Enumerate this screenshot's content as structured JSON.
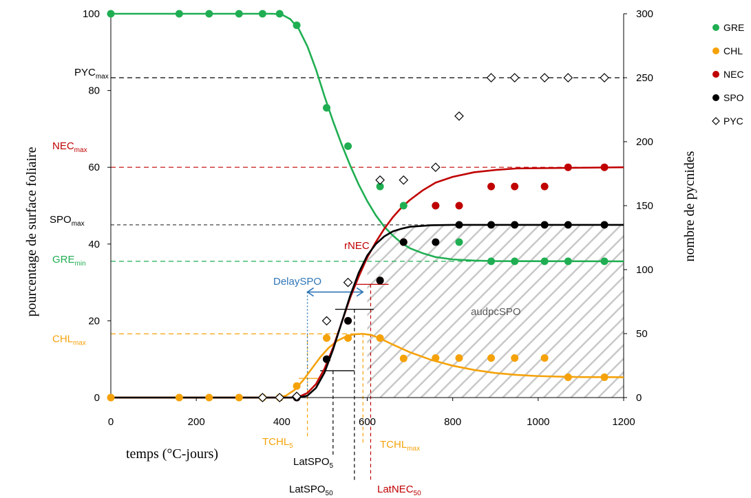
{
  "chart_data": {
    "type": "scatter",
    "xlabel": "temps (°C-jours)",
    "ylabel_left": "pourcentage de surface foliaire",
    "ylabel_right": "nombre de pycnides",
    "x_range": [
      0,
      1200
    ],
    "y_left_range": [
      0,
      100
    ],
    "y_right_range": [
      0,
      300
    ],
    "x_ticks": [
      "0",
      "200",
      "400",
      "600",
      "800",
      "1000",
      "1200"
    ],
    "y_left_ticks": [
      "0",
      "20",
      "40",
      "60",
      "80",
      "100"
    ],
    "y_right_ticks": [
      "0",
      "50",
      "100",
      "150",
      "200",
      "250",
      "300"
    ],
    "grid": false,
    "legend_position": "right",
    "colors": {
      "GRE": "#1fae52",
      "CHL": "#f5a20a",
      "NEC": "#c00000",
      "SPO": "#000000",
      "PYC": "#000000",
      "blue": "#2e75b6",
      "hatch": "#c8c8c8"
    },
    "series": [
      {
        "name": "GRE",
        "axis": "left",
        "marker": "circle",
        "points": [
          [
            0,
            100
          ],
          [
            160,
            100
          ],
          [
            230,
            100
          ],
          [
            300,
            100
          ],
          [
            355,
            100
          ],
          [
            395,
            100
          ],
          [
            435,
            97
          ],
          [
            505,
            75.5
          ],
          [
            555,
            65.5
          ],
          [
            630,
            55
          ],
          [
            685,
            50
          ],
          [
            760,
            50
          ],
          [
            815,
            40.5
          ],
          [
            890,
            35.5
          ],
          [
            945,
            35.5
          ],
          [
            1015,
            35.5
          ],
          [
            1070,
            35.5
          ],
          [
            1155,
            35.5
          ]
        ],
        "curve": [
          [
            0,
            100
          ],
          [
            380,
            100
          ],
          [
            400,
            99.8
          ],
          [
            420,
            98.6
          ],
          [
            440,
            96
          ],
          [
            460,
            91.5
          ],
          [
            480,
            85.5
          ],
          [
            500,
            78.5
          ],
          [
            520,
            72
          ],
          [
            540,
            66
          ],
          [
            560,
            60.5
          ],
          [
            580,
            55.5
          ],
          [
            600,
            51.2
          ],
          [
            620,
            47.5
          ],
          [
            640,
            44.5
          ],
          [
            660,
            42.2
          ],
          [
            680,
            40.3
          ],
          [
            700,
            38.9
          ],
          [
            730,
            37.6
          ],
          [
            760,
            36.6
          ],
          [
            800,
            36
          ],
          [
            850,
            35.7
          ],
          [
            900,
            35.55
          ],
          [
            1200,
            35.5
          ]
        ]
      },
      {
        "name": "CHL",
        "axis": "left",
        "marker": "circle",
        "points": [
          [
            0,
            0
          ],
          [
            160,
            0
          ],
          [
            230,
            0
          ],
          [
            300,
            0
          ],
          [
            355,
            0
          ],
          [
            395,
            0
          ],
          [
            435,
            3
          ],
          [
            505,
            15.5
          ],
          [
            555,
            15.5
          ],
          [
            630,
            15.5
          ],
          [
            685,
            10.2
          ],
          [
            760,
            10.3
          ],
          [
            815,
            10.3
          ],
          [
            890,
            10.3
          ],
          [
            945,
            10.3
          ],
          [
            1015,
            10.3
          ],
          [
            1070,
            5.3
          ],
          [
            1155,
            5.3
          ]
        ],
        "curve": [
          [
            0,
            0
          ],
          [
            390,
            0
          ],
          [
            410,
            0.5
          ],
          [
            430,
            2
          ],
          [
            450,
            4.5
          ],
          [
            470,
            7.5
          ],
          [
            490,
            10.5
          ],
          [
            510,
            13
          ],
          [
            530,
            14.8
          ],
          [
            550,
            15.9
          ],
          [
            570,
            16.5
          ],
          [
            590,
            16.6
          ],
          [
            610,
            16.3
          ],
          [
            630,
            15.4
          ],
          [
            660,
            13.8
          ],
          [
            700,
            11.8
          ],
          [
            750,
            9.8
          ],
          [
            800,
            8.3
          ],
          [
            850,
            7.2
          ],
          [
            900,
            6.4
          ],
          [
            950,
            5.9
          ],
          [
            1000,
            5.6
          ],
          [
            1050,
            5.45
          ],
          [
            1100,
            5.35
          ],
          [
            1200,
            5.3
          ]
        ]
      },
      {
        "name": "NEC",
        "axis": "left",
        "marker": "circle",
        "points": [
          [
            435,
            0
          ],
          [
            505,
            10
          ],
          [
            555,
            20
          ],
          [
            630,
            30.5
          ],
          [
            685,
            40.5
          ],
          [
            760,
            50
          ],
          [
            815,
            50
          ],
          [
            890,
            55
          ],
          [
            945,
            55
          ],
          [
            1015,
            55
          ],
          [
            1070,
            60
          ],
          [
            1155,
            60
          ]
        ],
        "curve": [
          [
            0,
            0
          ],
          [
            420,
            0
          ],
          [
            440,
            0.2
          ],
          [
            460,
            1.2
          ],
          [
            480,
            3.5
          ],
          [
            500,
            7.5
          ],
          [
            520,
            13
          ],
          [
            540,
            19.5
          ],
          [
            560,
            26
          ],
          [
            580,
            31.5
          ],
          [
            600,
            36.5
          ],
          [
            620,
            40.5
          ],
          [
            640,
            44
          ],
          [
            660,
            47
          ],
          [
            680,
            49.5
          ],
          [
            700,
            51.5
          ],
          [
            730,
            54
          ],
          [
            760,
            56
          ],
          [
            800,
            57.5
          ],
          [
            850,
            58.7
          ],
          [
            900,
            59.3
          ],
          [
            950,
            59.7
          ],
          [
            1200,
            60
          ]
        ]
      },
      {
        "name": "SPO",
        "axis": "left",
        "marker": "circle",
        "points": [
          [
            435,
            0
          ],
          [
            505,
            10
          ],
          [
            555,
            20
          ],
          [
            630,
            30.5
          ],
          [
            685,
            40.5
          ],
          [
            760,
            40.5
          ],
          [
            815,
            45
          ],
          [
            890,
            45
          ],
          [
            945,
            45
          ],
          [
            1015,
            45
          ],
          [
            1070,
            45
          ],
          [
            1155,
            45
          ]
        ],
        "curve": [
          [
            0,
            0
          ],
          [
            440,
            0
          ],
          [
            460,
            0.5
          ],
          [
            480,
            2.5
          ],
          [
            500,
            6.5
          ],
          [
            520,
            12.5
          ],
          [
            540,
            19.5
          ],
          [
            560,
            26.5
          ],
          [
            580,
            32.5
          ],
          [
            600,
            37
          ],
          [
            620,
            40
          ],
          [
            640,
            42
          ],
          [
            660,
            43.3
          ],
          [
            680,
            44
          ],
          [
            700,
            44.5
          ],
          [
            750,
            44.9
          ],
          [
            800,
            45
          ],
          [
            1200,
            45
          ]
        ]
      },
      {
        "name": "PYC",
        "axis": "right",
        "marker": "diamond-open",
        "points": [
          [
            355,
            0
          ],
          [
            395,
            0
          ],
          [
            435,
            1
          ],
          [
            505,
            60
          ],
          [
            555,
            90
          ],
          [
            630,
            170
          ],
          [
            685,
            170
          ],
          [
            760,
            180
          ],
          [
            815,
            220
          ],
          [
            890,
            250
          ],
          [
            945,
            250
          ],
          [
            1015,
            250
          ],
          [
            1070,
            250
          ],
          [
            1155,
            250
          ]
        ]
      }
    ],
    "annotations": {
      "PYCmax": {
        "base": "PYC",
        "sub": "max"
      },
      "NECmax": {
        "base": "NEC",
        "sub": "max"
      },
      "SPOmax": {
        "base": "SPO",
        "sub": "max"
      },
      "GREmin": {
        "base": "GRE",
        "sub": "min"
      },
      "CHLmax": {
        "base": "CHL",
        "sub": "max"
      },
      "rNEC": "rNEC",
      "DelaySPO": "DelaySPO",
      "audpcSPO": "audpcSPO",
      "TCHL5": {
        "base": "TCHL",
        "sub": "5"
      },
      "TCHLmax": {
        "base": "TCHL",
        "sub": "max"
      },
      "LatSPO5": {
        "base": "LatSPO",
        "sub": "5"
      },
      "LatSPO50": {
        "base": "LatSPO",
        "sub": "50"
      },
      "LatNEC50": {
        "base": "LatNEC",
        "sub": "50"
      }
    },
    "reference_levels": {
      "PYCmax_right": 250,
      "NECmax": 60,
      "SPOmax": 45,
      "GREmin": 35.5,
      "CHLmax": 16.6
    },
    "reference_times": {
      "TCHL5": 460,
      "LatSPO5": 520,
      "LatSPO50": 570,
      "TCHLmax": 590,
      "LatNEC50": 608
    }
  }
}
